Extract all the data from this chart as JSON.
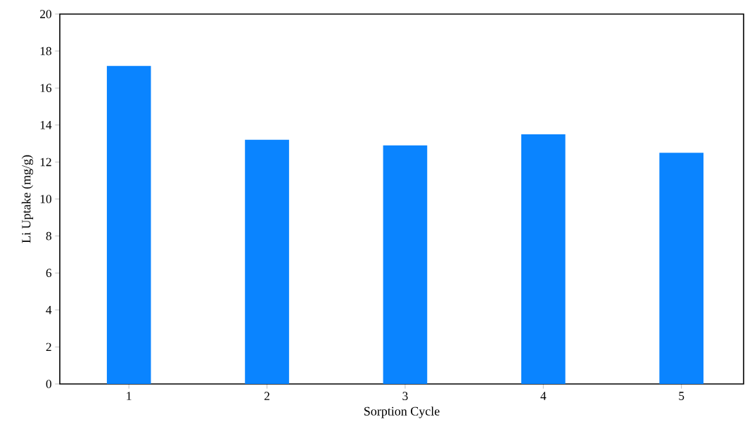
{
  "chart_data": {
    "type": "bar",
    "xlabel": "Sorption Cycle",
    "ylabel": "Li Uptake (mg/g)",
    "categories": [
      "1",
      "2",
      "3",
      "4",
      "5"
    ],
    "values": [
      17.2,
      13.2,
      12.9,
      13.5,
      12.5
    ],
    "color": "#0a84ff",
    "ylim": [
      0,
      20
    ],
    "yticks": [
      0,
      2,
      4,
      6,
      8,
      10,
      12,
      14,
      16,
      18,
      20
    ],
    "grid": false
  }
}
